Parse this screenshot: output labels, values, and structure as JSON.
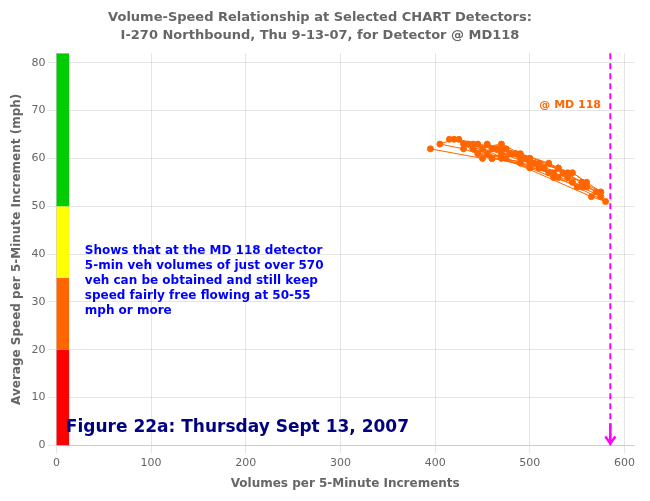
{
  "chart_data": {
    "type": "scatter",
    "title": "Volume-Speed Relationship at Selected CHART Detectors:",
    "subtitle": "I-270 Northbound, Thu 9-13-07, for Detector @ MD118",
    "xlabel": "Volumes per 5-Minute Increments",
    "ylabel": "Average Speed per 5-Minute Increment (mph)",
    "x": [
      395,
      450,
      480,
      500,
      470,
      440,
      460,
      510,
      530,
      490,
      520,
      540,
      470,
      455,
      500,
      515,
      480,
      465,
      430,
      445,
      560,
      545,
      575,
      555,
      530,
      505,
      485,
      510,
      495,
      475,
      415,
      435,
      455,
      475,
      510,
      540,
      525,
      500,
      470,
      450,
      565,
      580,
      550,
      530,
      510,
      490,
      460,
      440,
      420,
      405,
      430,
      460,
      490,
      520,
      545,
      560,
      570,
      555,
      535,
      515,
      485,
      465,
      445,
      425,
      440,
      470,
      500,
      525,
      555,
      575
    ],
    "values": [
      62,
      60,
      61,
      60,
      63,
      62,
      60,
      59,
      58,
      61,
      59,
      57,
      62,
      63,
      60,
      58,
      61,
      62,
      63,
      61,
      55,
      57,
      53,
      55,
      58,
      59,
      61,
      58,
      60,
      62,
      64,
      63,
      61,
      60,
      58,
      56,
      57,
      59,
      61,
      62,
      52,
      51,
      54,
      56,
      58,
      60,
      62,
      63,
      64,
      63,
      62,
      60,
      59,
      57,
      55,
      54,
      53,
      55,
      57,
      58,
      61,
      62,
      63,
      64,
      62,
      60,
      58,
      56,
      54,
      52
    ],
    "color": "#FF6600",
    "marker": "circle",
    "line_style": "solid",
    "xlim": [
      0,
      610
    ],
    "ylim": [
      0,
      82
    ],
    "xticks": [
      0,
      100,
      200,
      300,
      400,
      500,
      600
    ],
    "yticks": [
      0,
      10,
      20,
      30,
      40,
      50,
      60,
      70,
      80
    ],
    "grid": true,
    "bands": [
      {
        "from": 0,
        "to": 20,
        "color": "#FF0000"
      },
      {
        "from": 20,
        "to": 35,
        "color": "#FF6600"
      },
      {
        "from": 35,
        "to": 50,
        "color": "#FFFF00"
      },
      {
        "from": 50,
        "to": 82,
        "color": "#00CC00"
      }
    ],
    "vline": {
      "x": 585,
      "color": "#FF00FF",
      "line_style": "dashed"
    },
    "annotations": [
      {
        "text": "@ MD 118",
        "x": 510,
        "y": 70.5,
        "color": "#FF6600"
      },
      {
        "text": "Shows that at the MD 118 detector\n5-min veh volumes of just over 570\nveh can be obtained and still keep\nspeed fairly free flowing at 50-55\nmph or more",
        "x": 30,
        "y": 42,
        "color": "#0000FF"
      }
    ],
    "caption": {
      "text": "Figure 22a: Thursday Sept 13, 2007",
      "x": 10,
      "y": 2,
      "color": "#000080"
    }
  }
}
